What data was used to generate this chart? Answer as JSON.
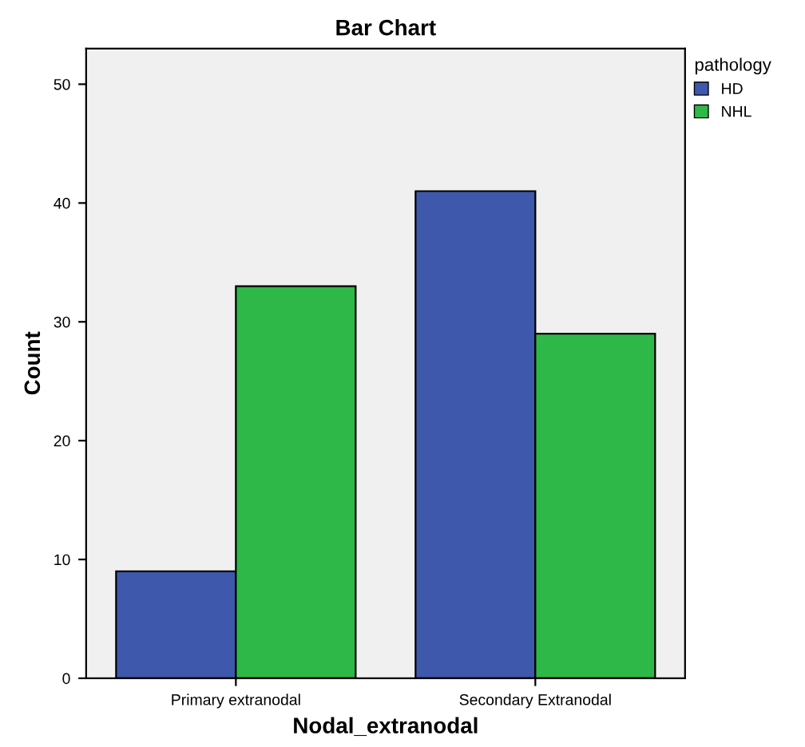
{
  "chart_data": {
    "type": "bar",
    "title": "Bar Chart",
    "xlabel": "Nodal_extranodal",
    "ylabel": "Count",
    "legend_title": "pathology",
    "categories": [
      "Primary extranodal",
      "Secondary Extranodal"
    ],
    "series": [
      {
        "name": "HD",
        "color": "#3e58ac",
        "values": [
          9,
          41
        ]
      },
      {
        "name": "NHL",
        "color": "#2eb848",
        "values": [
          33,
          29
        ]
      }
    ],
    "ylim": [
      0,
      53
    ],
    "yticks": [
      0,
      10,
      20,
      30,
      40,
      50
    ],
    "grid": false,
    "legend": "top right"
  }
}
